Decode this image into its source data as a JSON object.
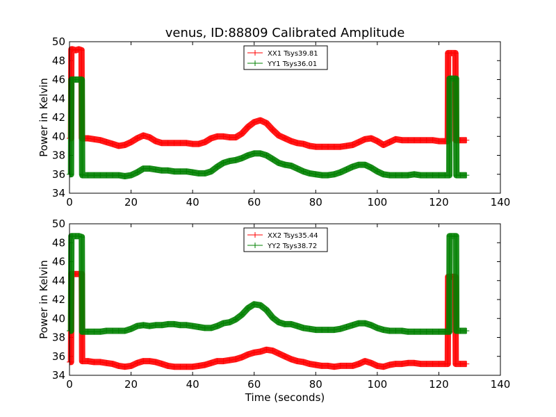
{
  "figure_title": "venus, ID:88809 Calibrated Amplitude",
  "colors": {
    "red_series": "#ff0000",
    "green_series": "#008000",
    "axes": "#000000",
    "background": "#ffffff"
  },
  "chart_data": [
    {
      "type": "line",
      "title": "venus, ID:88809 Calibrated Amplitude",
      "xlabel": "",
      "ylabel": "Power in Kelvin",
      "xlim": [
        0,
        140
      ],
      "ylim": [
        34,
        50
      ],
      "xticks": [
        0,
        20,
        40,
        60,
        80,
        100,
        120,
        140
      ],
      "yticks": [
        34,
        36,
        38,
        40,
        42,
        44,
        46,
        48,
        50
      ],
      "grid": false,
      "legend_position": "top-center",
      "series": [
        {
          "name": "XX1 Tsys39.81",
          "color": "#ff0000",
          "x": [
            0,
            0.5,
            0.6,
            1,
            2,
            3,
            3.9,
            4.0,
            4.1,
            6,
            8,
            10,
            12,
            14,
            16,
            18,
            20,
            22,
            24,
            26,
            28,
            30,
            32,
            34,
            36,
            38,
            40,
            42,
            44,
            46,
            48,
            50,
            52,
            54,
            56,
            58,
            60,
            62,
            64,
            66,
            68,
            70,
            72,
            74,
            76,
            78,
            80,
            82,
            84,
            86,
            88,
            90,
            92,
            94,
            96,
            98,
            100,
            102,
            104,
            106,
            108,
            110,
            112,
            114,
            116,
            118,
            120,
            122,
            122.9,
            123,
            124,
            125,
            125.4,
            125.5,
            127,
            129
          ],
          "y": [
            39.8,
            39.8,
            49.2,
            49.2,
            49.1,
            49.2,
            49.1,
            39.8,
            39.8,
            39.8,
            39.7,
            39.6,
            39.4,
            39.2,
            39.0,
            39.1,
            39.4,
            39.8,
            40.1,
            39.9,
            39.5,
            39.3,
            39.3,
            39.3,
            39.3,
            39.3,
            39.2,
            39.2,
            39.4,
            39.8,
            40.0,
            40.0,
            39.9,
            39.9,
            40.3,
            41.0,
            41.5,
            41.7,
            41.4,
            40.7,
            40.1,
            39.8,
            39.5,
            39.3,
            39.2,
            39.0,
            38.9,
            38.9,
            38.9,
            38.9,
            38.9,
            39.0,
            39.1,
            39.4,
            39.7,
            39.8,
            39.5,
            39.1,
            39.4,
            39.7,
            39.6,
            39.6,
            39.6,
            39.6,
            39.6,
            39.6,
            39.5,
            39.5,
            39.5,
            48.8,
            48.8,
            48.8,
            48.8,
            39.6,
            39.6,
            39.6
          ]
        },
        {
          "name": "YY1 Tsys36.01",
          "color": "#008000",
          "x": [
            0,
            0.5,
            0.6,
            1,
            2,
            3,
            4.0,
            4.1,
            4.2,
            6,
            8,
            10,
            12,
            14,
            16,
            18,
            20,
            22,
            24,
            26,
            28,
            30,
            32,
            34,
            36,
            38,
            40,
            42,
            44,
            46,
            48,
            50,
            52,
            54,
            56,
            58,
            60,
            62,
            64,
            66,
            68,
            70,
            72,
            74,
            76,
            78,
            80,
            82,
            84,
            86,
            88,
            90,
            92,
            94,
            96,
            98,
            100,
            102,
            104,
            106,
            108,
            110,
            112,
            114,
            116,
            118,
            120,
            122,
            123.4,
            123.5,
            124,
            125,
            125.6,
            125.7,
            127,
            129
          ],
          "y": [
            36.0,
            36.0,
            46.0,
            46.0,
            46.0,
            46.0,
            46.0,
            36.0,
            35.9,
            35.9,
            35.9,
            35.9,
            35.9,
            35.9,
            35.9,
            35.8,
            35.9,
            36.2,
            36.6,
            36.6,
            36.5,
            36.4,
            36.4,
            36.3,
            36.3,
            36.3,
            36.2,
            36.1,
            36.1,
            36.3,
            36.8,
            37.2,
            37.4,
            37.5,
            37.7,
            38.0,
            38.2,
            38.2,
            38.0,
            37.6,
            37.2,
            37.0,
            36.9,
            36.6,
            36.3,
            36.1,
            36.0,
            35.9,
            35.9,
            36.0,
            36.2,
            36.5,
            36.8,
            37.0,
            37.0,
            36.7,
            36.3,
            36.0,
            35.9,
            35.9,
            35.9,
            35.9,
            36.0,
            35.9,
            35.9,
            35.9,
            35.9,
            35.9,
            35.9,
            46.1,
            46.1,
            46.1,
            46.1,
            35.9,
            35.9,
            35.9
          ]
        }
      ]
    },
    {
      "type": "line",
      "title": "",
      "xlabel": "Time (seconds)",
      "ylabel": "Power in Kelvin",
      "xlim": [
        0,
        140
      ],
      "ylim": [
        34,
        50
      ],
      "xticks": [
        0,
        20,
        40,
        60,
        80,
        100,
        120,
        140
      ],
      "yticks": [
        34,
        36,
        38,
        40,
        42,
        44,
        46,
        48,
        50
      ],
      "grid": false,
      "legend_position": "top-center",
      "series": [
        {
          "name": "XX2 Tsys35.44",
          "color": "#ff0000",
          "x": [
            0,
            0.5,
            0.6,
            1,
            2,
            3,
            4.0,
            4.1,
            4.2,
            6,
            8,
            10,
            12,
            14,
            16,
            18,
            20,
            22,
            24,
            26,
            28,
            30,
            32,
            34,
            36,
            38,
            40,
            42,
            44,
            46,
            48,
            50,
            52,
            54,
            56,
            58,
            60,
            62,
            64,
            66,
            68,
            70,
            72,
            74,
            76,
            78,
            80,
            82,
            84,
            86,
            88,
            90,
            92,
            94,
            96,
            98,
            100,
            102,
            104,
            106,
            108,
            110,
            112,
            114,
            116,
            118,
            120,
            122,
            122.9,
            123,
            124,
            125,
            125.4,
            125.5,
            127,
            129
          ],
          "y": [
            35.4,
            35.4,
            44.7,
            44.7,
            44.7,
            44.7,
            44.7,
            35.5,
            35.5,
            35.5,
            35.4,
            35.4,
            35.3,
            35.2,
            35.0,
            34.9,
            35.0,
            35.3,
            35.5,
            35.5,
            35.4,
            35.2,
            35.0,
            34.9,
            34.9,
            34.9,
            34.9,
            35.0,
            35.1,
            35.3,
            35.5,
            35.5,
            35.6,
            35.7,
            35.9,
            36.2,
            36.4,
            36.5,
            36.7,
            36.6,
            36.3,
            36.0,
            35.7,
            35.5,
            35.4,
            35.2,
            35.1,
            35.0,
            35.0,
            34.9,
            35.0,
            35.0,
            35.0,
            35.2,
            35.5,
            35.3,
            35.0,
            34.9,
            35.1,
            35.2,
            35.2,
            35.3,
            35.3,
            35.2,
            35.2,
            35.2,
            35.2,
            35.2,
            35.2,
            44.4,
            44.4,
            44.4,
            44.4,
            35.2,
            35.2,
            35.2
          ]
        },
        {
          "name": "YY2 Tsys38.72",
          "color": "#008000",
          "x": [
            0,
            0.5,
            0.6,
            1,
            2,
            3,
            4.0,
            4.1,
            4.2,
            6,
            8,
            10,
            12,
            14,
            16,
            18,
            20,
            22,
            24,
            26,
            28,
            30,
            32,
            34,
            36,
            38,
            40,
            42,
            44,
            46,
            48,
            50,
            52,
            54,
            56,
            58,
            60,
            62,
            64,
            66,
            68,
            70,
            72,
            74,
            76,
            78,
            80,
            82,
            84,
            86,
            88,
            90,
            92,
            94,
            96,
            98,
            100,
            102,
            104,
            106,
            108,
            110,
            112,
            114,
            116,
            118,
            120,
            122,
            123.4,
            123.5,
            124,
            125,
            125.6,
            125.7,
            127,
            129
          ],
          "y": [
            38.7,
            38.7,
            48.7,
            48.7,
            48.7,
            48.7,
            48.6,
            38.6,
            38.6,
            38.6,
            38.6,
            38.6,
            38.7,
            38.7,
            38.7,
            38.7,
            38.9,
            39.2,
            39.3,
            39.2,
            39.3,
            39.3,
            39.4,
            39.4,
            39.3,
            39.3,
            39.2,
            39.1,
            39.0,
            39.0,
            39.2,
            39.5,
            39.6,
            39.9,
            40.4,
            41.1,
            41.5,
            41.4,
            40.9,
            40.1,
            39.6,
            39.4,
            39.4,
            39.2,
            39.0,
            38.9,
            38.8,
            38.8,
            38.8,
            38.8,
            38.9,
            39.1,
            39.3,
            39.5,
            39.5,
            39.3,
            39.0,
            38.8,
            38.7,
            38.7,
            38.7,
            38.6,
            38.6,
            38.6,
            38.6,
            38.6,
            38.6,
            38.6,
            38.6,
            48.7,
            48.7,
            48.7,
            48.7,
            38.7,
            38.7,
            38.7
          ]
        }
      ]
    }
  ]
}
